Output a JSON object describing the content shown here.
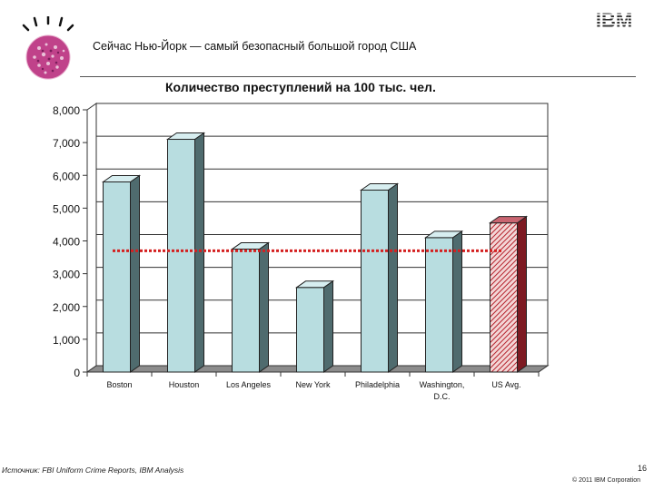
{
  "header": {
    "title": "Сейчас Нью-Йорк — самый безопасный большой город США",
    "logo_text": "IBM"
  },
  "chart_data": {
    "type": "bar",
    "title": "Количество преступлений на 100 тыс. чел.",
    "categories": [
      "Boston",
      "Houston",
      "Los Angeles",
      "New York",
      "Philadelphia",
      "Washington, D.C.",
      "US Avg."
    ],
    "values": [
      5800,
      7100,
      3750,
      2580,
      5550,
      4100,
      4550
    ],
    "reference_line": 3700,
    "yticks": [
      "8,000",
      "7,000",
      "6,000",
      "5,000",
      "4,000",
      "3,000",
      "2,000",
      "1,000",
      "0"
    ],
    "ylim": [
      0,
      8000
    ],
    "grid": true,
    "bar_color": "#b8dde0",
    "highlight_color": "#b5222c",
    "reference_color": "#d42020"
  },
  "footer": {
    "source": "Источник: FBI Uniform Crime Reports, IBM Analysis",
    "page": "16",
    "copyright": "© 2011 IBM Corporation"
  }
}
